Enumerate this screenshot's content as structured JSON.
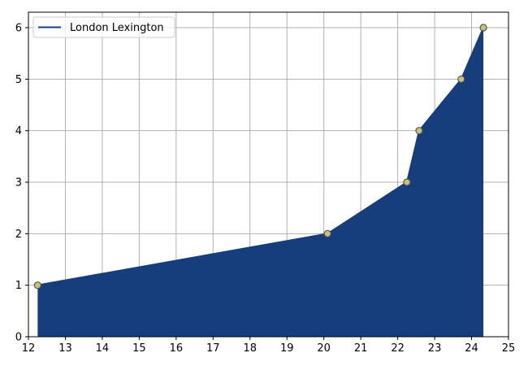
{
  "chart_data": {
    "type": "area",
    "title": "",
    "xlabel": "",
    "ylabel": "",
    "xlim": [
      12,
      25
    ],
    "ylim": [
      0,
      6.3
    ],
    "x_ticks": [
      12,
      13,
      14,
      15,
      16,
      17,
      18,
      19,
      20,
      21,
      22,
      23,
      24,
      25
    ],
    "y_ticks": [
      0,
      1,
      2,
      3,
      4,
      5,
      6
    ],
    "grid": true,
    "legend_position": "top-left",
    "series": [
      {
        "name": "London Lexington",
        "x": [
          12.25,
          20.1,
          22.25,
          22.58,
          23.72,
          24.32
        ],
        "y": [
          1,
          2,
          3,
          4,
          5,
          6
        ],
        "fill_color": "#163d7c",
        "line_color": "#163d7c",
        "marker_fill": "#c6c27a",
        "marker_edge": "#555555"
      }
    ]
  }
}
